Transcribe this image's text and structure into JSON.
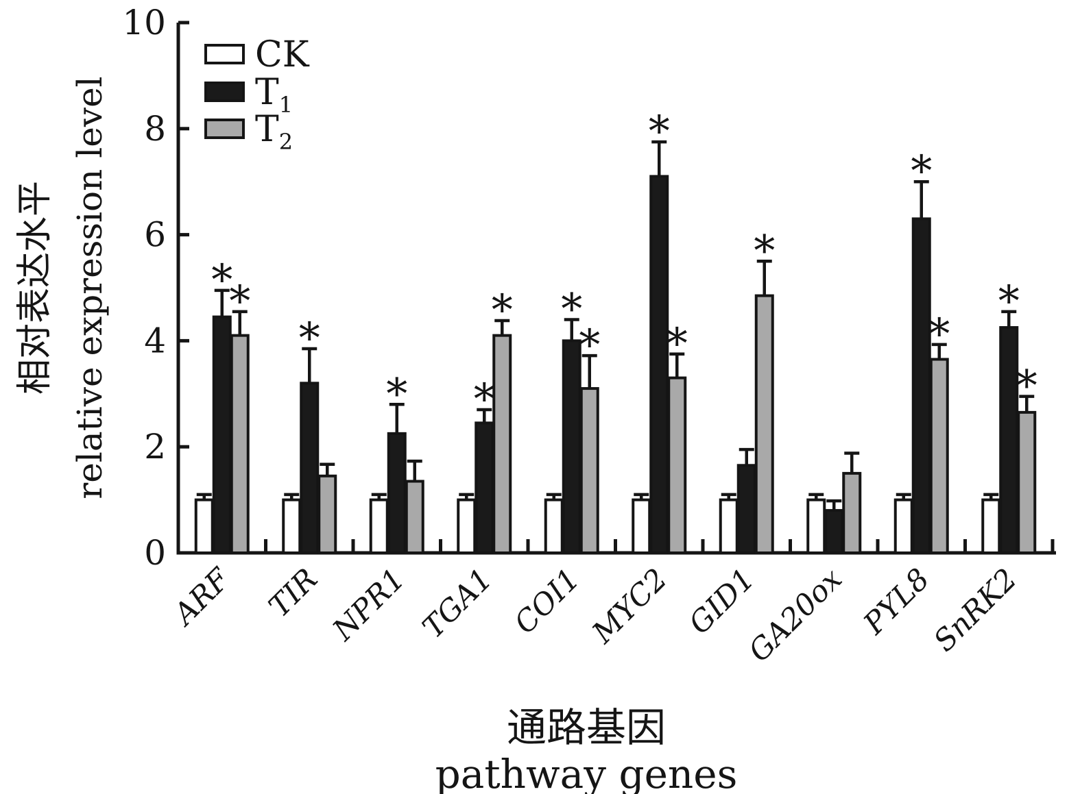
{
  "figure": {
    "legend": {
      "items": [
        {
          "key": "CK",
          "base": "CK",
          "sub": "",
          "fill": "white"
        },
        {
          "key": "T1",
          "base": "T",
          "sub": "1",
          "fill": "black"
        },
        {
          "key": "T2",
          "base": "T",
          "sub": "2",
          "fill": "gray"
        }
      ]
    },
    "colors": {
      "ink": "#151515",
      "white_bar": "#ffffff",
      "black_bar": "#1a1a1a",
      "gray_bar": "#a9a9a9",
      "background": "#ffffff"
    }
  },
  "chart_data": {
    "type": "bar",
    "title": "",
    "ylabel_zh": "相对表达水平",
    "ylabel_en": "relative expression level",
    "xlabel_zh": "通路基因",
    "xlabel_en": "pathway genes",
    "ylim": [
      0,
      10
    ],
    "y_ticks": [
      0,
      2,
      4,
      6,
      8,
      10
    ],
    "grid": false,
    "legend_position": "upper-left-inside",
    "significance_marker": "*",
    "categories": [
      "ARF",
      "TIR",
      "NPR1",
      "TGA1",
      "COI1",
      "MYC2",
      "GID1",
      "GA20ox",
      "PYL8",
      "SnRK2"
    ],
    "series": [
      {
        "name": "CK",
        "fill": "white",
        "values": [
          1.0,
          1.0,
          1.0,
          1.0,
          1.0,
          1.0,
          1.0,
          1.0,
          1.0,
          1.0
        ],
        "errors": [
          0.1,
          0.1,
          0.1,
          0.1,
          0.1,
          0.1,
          0.1,
          0.1,
          0.1,
          0.1
        ],
        "significant": [
          false,
          false,
          false,
          false,
          false,
          false,
          false,
          false,
          false,
          false
        ]
      },
      {
        "name": "T1",
        "fill": "black",
        "values": [
          4.45,
          3.2,
          2.25,
          2.45,
          4.0,
          7.1,
          1.65,
          0.8,
          6.3,
          4.25
        ],
        "errors": [
          0.5,
          0.65,
          0.55,
          0.25,
          0.4,
          0.65,
          0.3,
          0.18,
          0.7,
          0.3
        ],
        "significant": [
          true,
          true,
          true,
          true,
          true,
          true,
          false,
          false,
          true,
          true
        ]
      },
      {
        "name": "T2",
        "fill": "gray",
        "values": [
          4.1,
          1.45,
          1.35,
          4.1,
          3.1,
          3.3,
          4.85,
          1.5,
          3.65,
          2.65
        ],
        "errors": [
          0.45,
          0.22,
          0.38,
          0.28,
          0.62,
          0.45,
          0.65,
          0.38,
          0.28,
          0.3
        ],
        "significant": [
          true,
          false,
          false,
          true,
          true,
          true,
          true,
          false,
          true,
          true
        ]
      }
    ]
  }
}
